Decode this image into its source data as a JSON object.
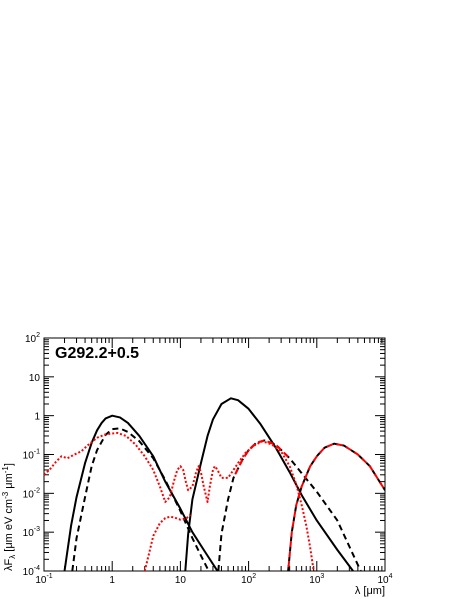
{
  "chart_data": {
    "type": "line",
    "title": "G292.2+0.5",
    "xlabel": "λ [μm]",
    "ylabel_parts": [
      "λF",
      "λ",
      " [μm eV cm",
      "-3",
      " μm",
      "-1",
      "]"
    ],
    "xscale": "log",
    "yscale": "log",
    "xlim": [
      0.1,
      10000
    ],
    "ylim": [
      0.0001,
      100
    ],
    "x_tick_labels": [
      {
        "base": "10",
        "exp": "-1"
      },
      {
        "base": "1",
        "exp": ""
      },
      {
        "base": "10",
        "exp": ""
      },
      {
        "base": "10",
        "exp": "2"
      },
      {
        "base": "10",
        "exp": "3"
      },
      {
        "base": "10",
        "exp": "4"
      }
    ],
    "y_tick_labels": [
      {
        "base": "10",
        "exp": "-4"
      },
      {
        "base": "10",
        "exp": "-3"
      },
      {
        "base": "10",
        "exp": "-2"
      },
      {
        "base": "10",
        "exp": "-1"
      },
      {
        "base": "1",
        "exp": ""
      },
      {
        "base": "10",
        "exp": ""
      },
      {
        "base": "10",
        "exp": "2"
      }
    ],
    "series": [
      {
        "style": "solid",
        "color": "#000000",
        "points": [
          [
            0.2,
            0.0001
          ],
          [
            0.25,
            0.0015
          ],
          [
            0.3,
            0.008
          ],
          [
            0.4,
            0.06
          ],
          [
            0.5,
            0.2
          ],
          [
            0.6,
            0.42
          ],
          [
            0.7,
            0.65
          ],
          [
            0.8,
            0.85
          ],
          [
            1,
            1.0
          ],
          [
            1.3,
            0.9
          ],
          [
            1.7,
            0.65
          ],
          [
            2.5,
            0.3
          ],
          [
            4,
            0.09
          ],
          [
            6,
            0.02
          ],
          [
            10,
            0.004
          ],
          [
            15,
            0.001
          ],
          [
            22,
            0.00035
          ],
          [
            35,
            0.0001
          ]
        ]
      },
      {
        "style": "dashed",
        "color": "#000000",
        "points": [
          [
            0.26,
            0.0001
          ],
          [
            0.3,
            0.0007
          ],
          [
            0.4,
            0.008
          ],
          [
            0.5,
            0.05
          ],
          [
            0.6,
            0.13
          ],
          [
            0.8,
            0.32
          ],
          [
            1.0,
            0.45
          ],
          [
            1.3,
            0.47
          ],
          [
            1.7,
            0.38
          ],
          [
            2.5,
            0.22
          ],
          [
            4,
            0.08
          ],
          [
            6,
            0.022
          ],
          [
            10,
            0.0035
          ],
          [
            15,
            0.0007
          ],
          [
            20,
            0.00025
          ],
          [
            26,
            0.0001
          ]
        ]
      },
      {
        "style": "solid",
        "color": "#000000",
        "points": [
          [
            11.8,
            0.0001
          ],
          [
            13,
            0.0009
          ],
          [
            15,
            0.007
          ],
          [
            20,
            0.06
          ],
          [
            25,
            0.3
          ],
          [
            30,
            0.8
          ],
          [
            40,
            2.0
          ],
          [
            55,
            2.8
          ],
          [
            70,
            2.5
          ],
          [
            100,
            1.5
          ],
          [
            150,
            0.6
          ],
          [
            250,
            0.15
          ],
          [
            400,
            0.035
          ],
          [
            600,
            0.009
          ],
          [
            1000,
            0.002
          ],
          [
            2000,
            0.00035
          ],
          [
            3400,
            0.0001
          ]
        ]
      },
      {
        "style": "dashed",
        "color": "#000000",
        "points": [
          [
            36,
            0.0001
          ],
          [
            40,
            0.0009
          ],
          [
            50,
            0.007
          ],
          [
            60,
            0.025
          ],
          [
            80,
            0.07
          ],
          [
            100,
            0.13
          ],
          [
            130,
            0.2
          ],
          [
            170,
            0.23
          ],
          [
            250,
            0.18
          ],
          [
            400,
            0.08
          ],
          [
            600,
            0.033
          ],
          [
            1000,
            0.011
          ],
          [
            2000,
            0.002
          ],
          [
            4400,
            0.0001
          ]
        ]
      },
      {
        "style": "dashed",
        "color": "#000000",
        "points": [
          [
            380,
            0.0001
          ],
          [
            430,
            0.001
          ],
          [
            500,
            0.005
          ],
          [
            600,
            0.015
          ],
          [
            800,
            0.05
          ],
          [
            1000,
            0.09
          ],
          [
            1300,
            0.15
          ],
          [
            1800,
            0.19
          ],
          [
            2500,
            0.17
          ],
          [
            4000,
            0.1
          ],
          [
            6000,
            0.05
          ],
          [
            10000,
            0.012
          ]
        ]
      },
      {
        "style": "dotted",
        "color": "#ff0000",
        "points": [
          [
            0.1,
            0.03
          ],
          [
            0.12,
            0.04
          ],
          [
            0.15,
            0.065
          ],
          [
            0.18,
            0.09
          ],
          [
            0.22,
            0.08
          ],
          [
            0.28,
            0.1
          ],
          [
            0.35,
            0.12
          ],
          [
            0.45,
            0.18
          ],
          [
            0.6,
            0.27
          ],
          [
            0.8,
            0.33
          ],
          [
            1.2,
            0.36
          ],
          [
            1.6,
            0.3
          ],
          [
            2.2,
            0.18
          ],
          [
            3,
            0.09
          ],
          [
            4,
            0.04
          ],
          [
            5,
            0.015
          ],
          [
            6,
            0.006
          ],
          [
            7,
            0.008
          ],
          [
            8,
            0.02
          ],
          [
            9,
            0.04
          ],
          [
            10,
            0.05
          ],
          [
            11,
            0.04
          ],
          [
            12,
            0.02
          ],
          [
            13,
            0.012
          ],
          [
            15,
            0.015
          ],
          [
            17,
            0.035
          ],
          [
            18.5,
            0.05
          ],
          [
            20,
            0.035
          ],
          [
            22,
            0.015
          ],
          [
            24,
            0.008
          ],
          [
            25,
            0.006
          ],
          [
            27,
            0.015
          ],
          [
            30,
            0.04
          ],
          [
            32,
            0.05
          ],
          [
            35,
            0.04
          ],
          [
            40,
            0.025
          ],
          [
            50,
            0.025
          ],
          [
            60,
            0.04
          ],
          [
            70,
            0.06
          ],
          [
            90,
            0.11
          ],
          [
            120,
            0.17
          ],
          [
            160,
            0.22
          ],
          [
            220,
            0.18
          ],
          [
            300,
            0.12
          ],
          [
            400,
            0.05
          ],
          [
            500,
            0.017
          ],
          [
            600,
            0.005
          ],
          [
            700,
            0.0015
          ],
          [
            800,
            0.0004
          ],
          [
            900,
            0.0001
          ]
        ]
      },
      {
        "style": "dotted",
        "color": "#ff0000",
        "points": [
          [
            3,
            0.0001
          ],
          [
            3.5,
            0.0003
          ],
          [
            4,
            0.0008
          ],
          [
            5,
            0.0017
          ],
          [
            6,
            0.0023
          ],
          [
            7,
            0.0025
          ],
          [
            8,
            0.0024
          ],
          [
            10,
            0.0021
          ],
          [
            12,
            0.0022
          ],
          [
            14,
            0.0028
          ]
        ]
      },
      {
        "style": "dashed",
        "color": "#ff0000",
        "dash_phase": 6,
        "points": [
          [
            380,
            0.0001
          ],
          [
            430,
            0.001
          ],
          [
            500,
            0.005
          ],
          [
            600,
            0.015
          ],
          [
            800,
            0.05
          ],
          [
            1000,
            0.09
          ],
          [
            1300,
            0.15
          ],
          [
            1800,
            0.19
          ],
          [
            2500,
            0.17
          ],
          [
            4000,
            0.1
          ],
          [
            6000,
            0.05
          ],
          [
            10000,
            0.012
          ]
        ]
      },
      {
        "style": "dashed",
        "color": "#ff0000",
        "dash_phase": 6,
        "points": [
          [
            60,
            0.025
          ],
          [
            80,
            0.07
          ],
          [
            100,
            0.13
          ],
          [
            130,
            0.2
          ],
          [
            170,
            0.23
          ],
          [
            250,
            0.18
          ],
          [
            400,
            0.08
          ]
        ]
      }
    ]
  }
}
